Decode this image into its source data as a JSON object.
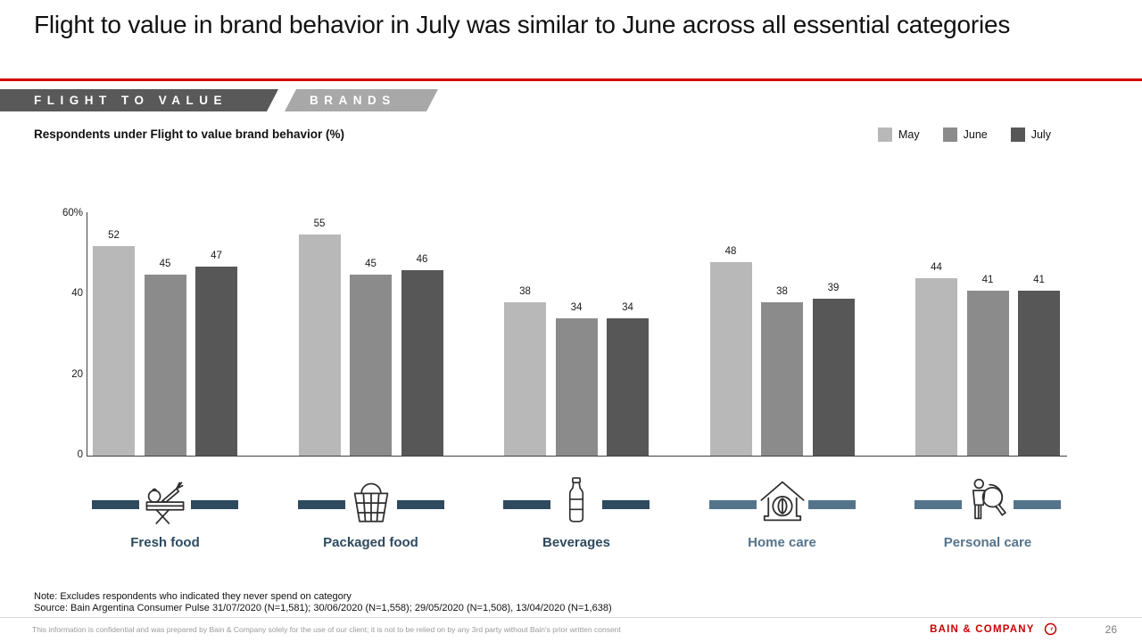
{
  "slide": {
    "title": "Flight to value in brand behavior in July was similar to June across all essential categories",
    "page_number": "26",
    "brand_name": "BAIN & COMPANY",
    "footer_disclaimer": "This information is confidential and was prepared by Bain & Company solely for the use of our client; it is not to be relied on by any 3rd party without Bain's prior written consent"
  },
  "tags": {
    "tag1": "FLIGHT TO VALUE",
    "tag2": "BRANDS"
  },
  "chart_header": {
    "subtitle": "Respondents under Flight to value brand behavior (%)"
  },
  "legend": [
    {
      "label": "May",
      "color": "#b8b8b8"
    },
    {
      "label": "June",
      "color": "#8b8b8b"
    },
    {
      "label": "July",
      "color": "#575757"
    }
  ],
  "chart_data": {
    "type": "bar",
    "title": "Respondents under Flight to value brand behavior (%)",
    "categories": [
      "Fresh food",
      "Packaged food",
      "Beverages",
      "Home care",
      "Personal care"
    ],
    "series": [
      {
        "name": "May",
        "color": "#b8b8b8",
        "values": [
          52,
          55,
          38,
          48,
          44
        ]
      },
      {
        "name": "June",
        "color": "#8b8b8b",
        "values": [
          45,
          45,
          34,
          38,
          41
        ]
      },
      {
        "name": "July",
        "color": "#575757",
        "values": [
          47,
          46,
          34,
          39,
          41
        ]
      }
    ],
    "ylim": [
      0,
      60
    ],
    "yticks": [
      {
        "label": "60%",
        "value": 60
      },
      {
        "label": "40",
        "value": 40
      },
      {
        "label": "20",
        "value": 20
      },
      {
        "label": "0",
        "value": 0
      }
    ],
    "grid": false,
    "legend_position": "top-right",
    "category_colors": [
      "#2e4a5e",
      "#2e4a5e",
      "#2e4a5e",
      "#54748c",
      "#54748c"
    ],
    "category_icons": [
      "market-stall-icon",
      "basket-icon",
      "bottle-icon",
      "house-leaf-icon",
      "person-magnifier-icon"
    ]
  },
  "notes": {
    "note": "Note: Excludes respondents who indicated they never spend on category",
    "source": "Source: Bain Argentina Consumer Pulse 31/07/2020 (N=1,581); 30/06/2020 (N=1,558); 29/05/2020 (N=1,508), 13/04/2020 (N=1,638)"
  }
}
